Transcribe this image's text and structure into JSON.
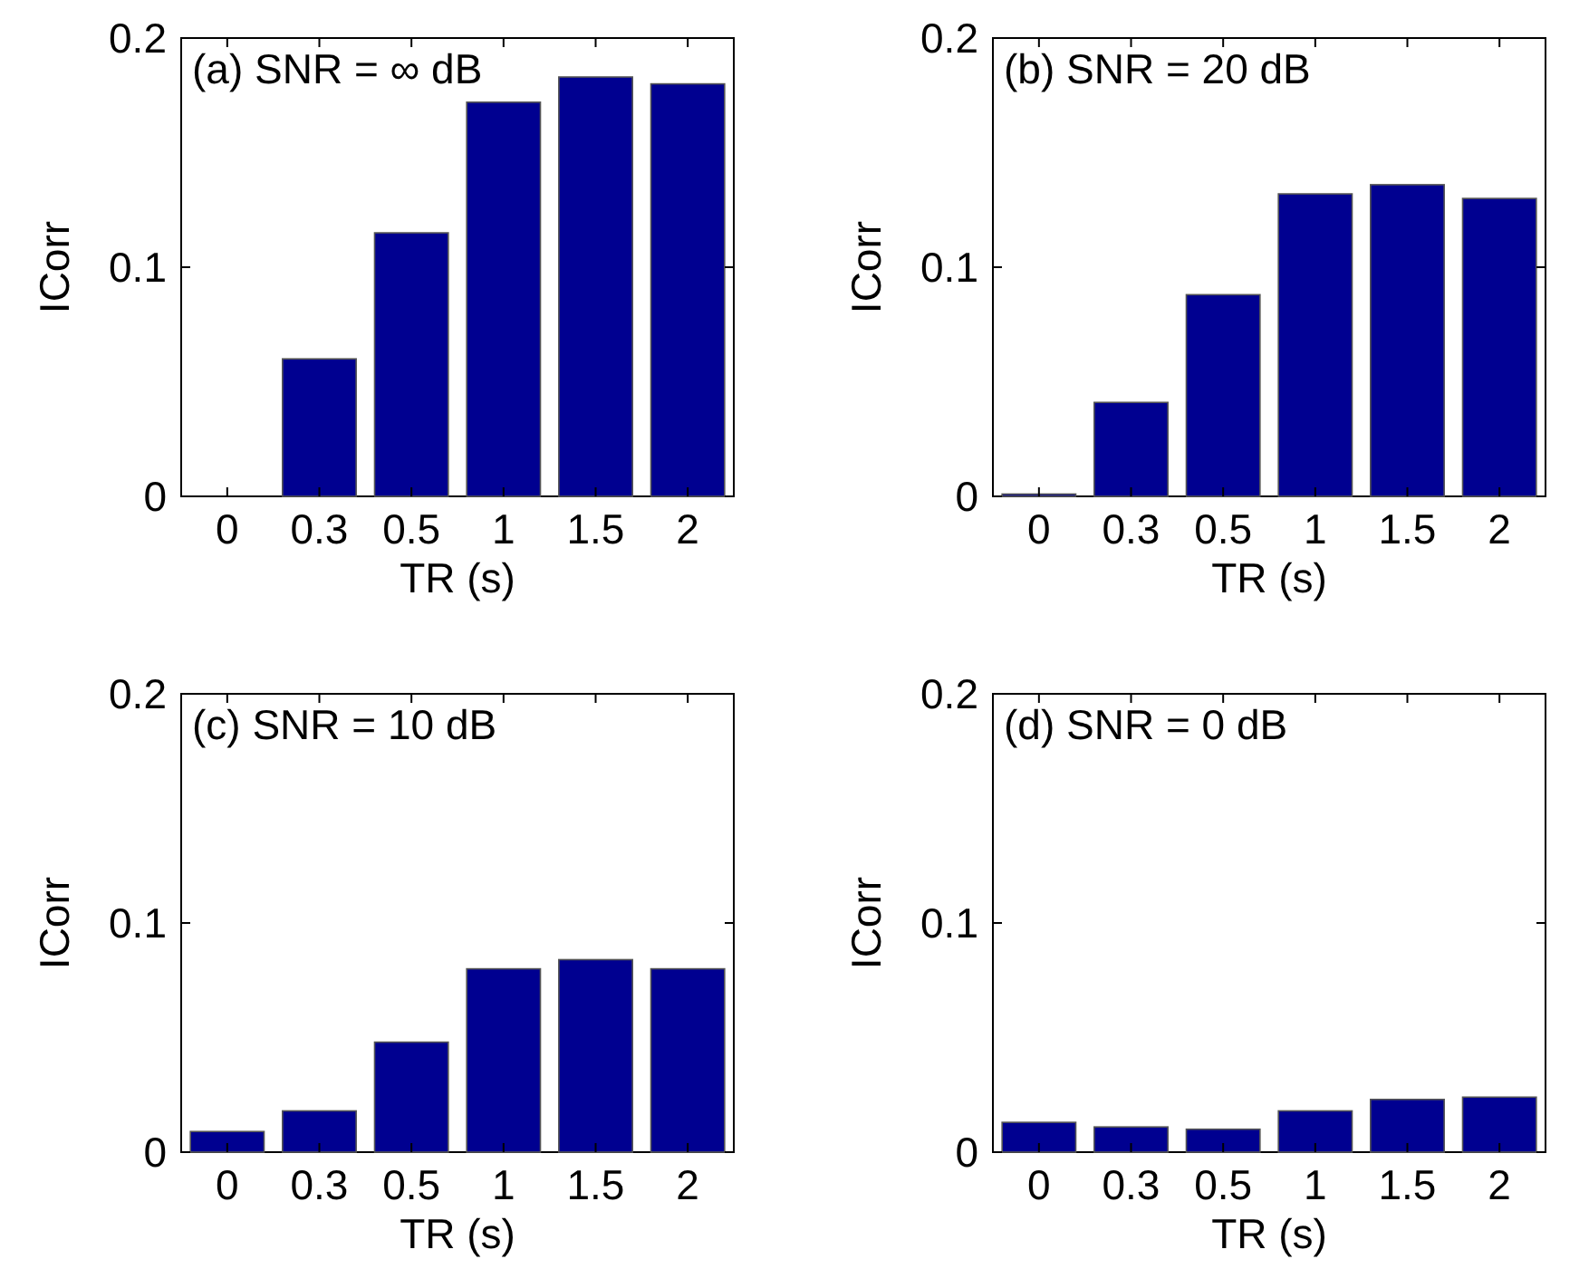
{
  "chart_data": [
    {
      "type": "bar",
      "title": "(a) SNR = ∞ dB",
      "xlabel": "TR (s)",
      "ylabel": "ICorr",
      "categories": [
        "0",
        "0.3",
        "0.5",
        "1",
        "1.5",
        "2"
      ],
      "values": [
        0,
        0.06,
        0.115,
        0.172,
        0.183,
        0.18
      ],
      "color": "#000090",
      "ylim": [
        0,
        0.2
      ],
      "yticks": [
        0,
        0.1,
        0.2
      ]
    },
    {
      "type": "bar",
      "title": "(b) SNR = 20 dB",
      "xlabel": "TR (s)",
      "ylabel": "ICorr",
      "categories": [
        "0",
        "0.3",
        "0.5",
        "1",
        "1.5",
        "2"
      ],
      "values": [
        0.001,
        0.041,
        0.088,
        0.132,
        0.136,
        0.13
      ],
      "color": "#000090",
      "ylim": [
        0,
        0.2
      ],
      "yticks": [
        0,
        0.1,
        0.2
      ]
    },
    {
      "type": "bar",
      "title": "(c) SNR = 10 dB",
      "xlabel": "TR (s)",
      "ylabel": "ICorr",
      "categories": [
        "0",
        "0.3",
        "0.5",
        "1",
        "1.5",
        "2"
      ],
      "values": [
        0.009,
        0.018,
        0.048,
        0.08,
        0.084,
        0.08
      ],
      "color": "#000090",
      "ylim": [
        0,
        0.2
      ],
      "yticks": [
        0,
        0.1,
        0.2
      ]
    },
    {
      "type": "bar",
      "title": "(d) SNR = 0 dB",
      "xlabel": "TR (s)",
      "ylabel": "ICorr",
      "categories": [
        "0",
        "0.3",
        "0.5",
        "1",
        "1.5",
        "2"
      ],
      "values": [
        0.013,
        0.011,
        0.01,
        0.018,
        0.023,
        0.024
      ],
      "color": "#000090",
      "ylim": [
        0,
        0.2
      ],
      "yticks": [
        0,
        0.1,
        0.2
      ]
    }
  ]
}
